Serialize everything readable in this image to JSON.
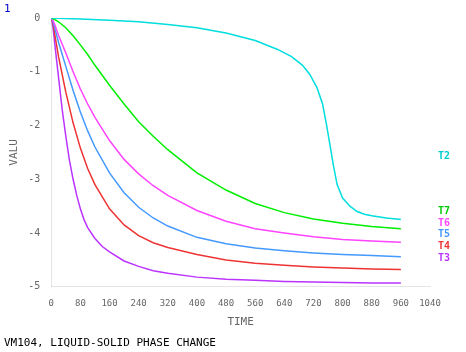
{
  "chart_data": {
    "type": "line",
    "title": "VM104, LIQUID-SOLID PHASE CHANGE",
    "page_label": "1",
    "x_label": "TIME",
    "y_label": "VALU",
    "xlim": [
      0,
      1040
    ],
    "xticks": [
      0,
      80,
      160,
      240,
      320,
      400,
      480,
      560,
      640,
      720,
      800,
      880,
      960,
      1040
    ],
    "ylim": [
      -5,
      0
    ],
    "yticks": [
      0,
      -1,
      -2,
      -3,
      -4,
      -5
    ],
    "grid": false,
    "series": [
      {
        "name": "T2",
        "color": "#00DDDD",
        "label_color": "#00CCCC",
        "label_y": -2.58,
        "x": [
          0,
          80,
          160,
          240,
          320,
          400,
          480,
          560,
          620,
          660,
          690,
          710,
          730,
          745,
          755,
          765,
          775,
          785,
          800,
          820,
          840,
          860,
          880,
          920,
          960
        ],
        "values": [
          0,
          -0.02,
          -0.04,
          -0.07,
          -0.12,
          -0.18,
          -0.28,
          -0.42,
          -0.58,
          -0.72,
          -0.88,
          -1.05,
          -1.3,
          -1.6,
          -1.95,
          -2.35,
          -2.75,
          -3.1,
          -3.35,
          -3.5,
          -3.6,
          -3.65,
          -3.68,
          -3.72,
          -3.75
        ]
      },
      {
        "name": "T7",
        "color": "#00EE00",
        "label_color": "#00CC00",
        "label_y": -3.6,
        "x": [
          0,
          10,
          20,
          40,
          60,
          80,
          100,
          120,
          160,
          200,
          240,
          280,
          320,
          400,
          480,
          560,
          640,
          720,
          800,
          880,
          960
        ],
        "values": [
          0,
          -0.03,
          -0.07,
          -0.18,
          -0.33,
          -0.5,
          -0.68,
          -0.88,
          -1.25,
          -1.6,
          -1.93,
          -2.2,
          -2.45,
          -2.88,
          -3.2,
          -3.45,
          -3.62,
          -3.74,
          -3.82,
          -3.88,
          -3.92
        ]
      },
      {
        "name": "T6",
        "color": "#FF44FF",
        "label_color": "#FF44FF",
        "label_y": -3.82,
        "x": [
          0,
          5,
          10,
          20,
          40,
          60,
          80,
          100,
          120,
          160,
          200,
          240,
          280,
          320,
          400,
          480,
          560,
          640,
          720,
          800,
          880,
          960
        ],
        "values": [
          0,
          -0.05,
          -0.13,
          -0.32,
          -0.65,
          -1.0,
          -1.32,
          -1.6,
          -1.85,
          -2.28,
          -2.63,
          -2.9,
          -3.12,
          -3.3,
          -3.58,
          -3.78,
          -3.92,
          -4.0,
          -4.07,
          -4.12,
          -4.15,
          -4.17
        ]
      },
      {
        "name": "T5",
        "color": "#4499FF",
        "label_color": "#4499FF",
        "label_y": -4.02,
        "x": [
          0,
          5,
          10,
          20,
          40,
          60,
          80,
          100,
          120,
          160,
          200,
          240,
          280,
          320,
          400,
          480,
          560,
          640,
          720,
          800,
          880,
          960
        ],
        "values": [
          0,
          -0.08,
          -0.2,
          -0.45,
          -0.9,
          -1.35,
          -1.75,
          -2.1,
          -2.4,
          -2.88,
          -3.25,
          -3.52,
          -3.72,
          -3.87,
          -4.08,
          -4.2,
          -4.28,
          -4.33,
          -4.37,
          -4.4,
          -4.42,
          -4.44
        ]
      },
      {
        "name": "T4",
        "color": "#EE3333",
        "label_color": "#EE3333",
        "label_y": -4.25,
        "x": [
          0,
          5,
          10,
          20,
          40,
          60,
          80,
          100,
          120,
          160,
          200,
          240,
          280,
          320,
          400,
          480,
          560,
          640,
          720,
          800,
          880,
          960
        ],
        "values": [
          0,
          -0.12,
          -0.32,
          -0.72,
          -1.38,
          -1.95,
          -2.42,
          -2.8,
          -3.1,
          -3.55,
          -3.85,
          -4.05,
          -4.18,
          -4.27,
          -4.4,
          -4.5,
          -4.56,
          -4.6,
          -4.63,
          -4.65,
          -4.67,
          -4.68
        ]
      },
      {
        "name": "T3",
        "color": "#BB33FF",
        "label_color": "#BB33FF",
        "label_y": -4.48,
        "x": [
          0,
          5,
          10,
          20,
          30,
          40,
          50,
          60,
          70,
          80,
          90,
          100,
          120,
          140,
          160,
          200,
          240,
          280,
          320,
          400,
          480,
          560,
          640,
          720,
          800,
          880,
          960
        ],
        "values": [
          0,
          -0.18,
          -0.5,
          -1.1,
          -1.7,
          -2.2,
          -2.65,
          -3.0,
          -3.3,
          -3.55,
          -3.75,
          -3.9,
          -4.1,
          -4.25,
          -4.35,
          -4.52,
          -4.62,
          -4.7,
          -4.75,
          -4.82,
          -4.86,
          -4.88,
          -4.9,
          -4.91,
          -4.92,
          -4.93,
          -4.93
        ]
      }
    ]
  }
}
